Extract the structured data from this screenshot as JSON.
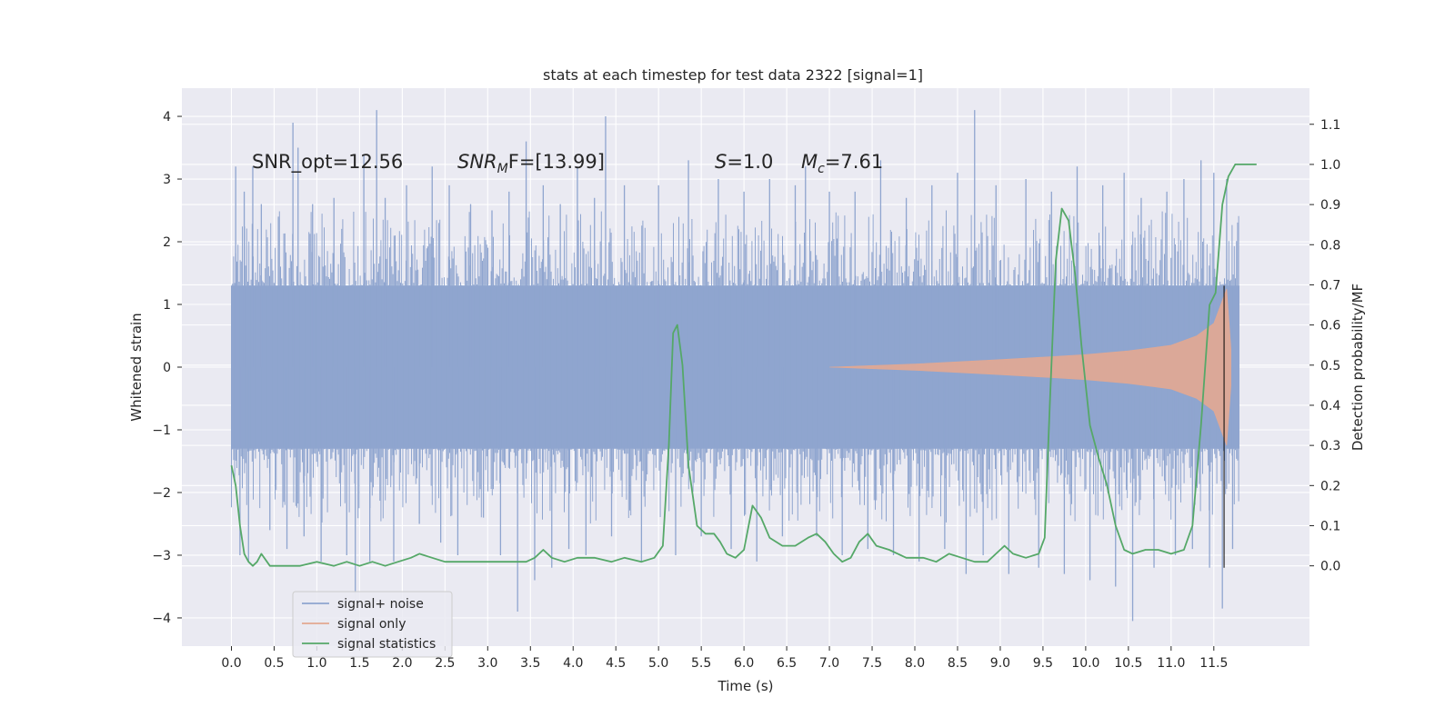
{
  "chart_data": {
    "type": "line",
    "title": "stats at each timestep for test data 2322 [signal=1]",
    "xlabel": "Time (s)",
    "ylabel": "Whitened strain",
    "y2label": "Detection probability/MF",
    "xlim": [
      -0.58,
      12.62
    ],
    "ylim": [
      -4.45,
      4.45
    ],
    "y2lim": [
      -0.2,
      1.19
    ],
    "x_ticks": [
      "0.0",
      "0.5",
      "1.0",
      "1.5",
      "2.0",
      "2.5",
      "3.0",
      "3.5",
      "4.0",
      "4.5",
      "5.0",
      "5.5",
      "6.0",
      "6.5",
      "7.0",
      "7.5",
      "8.0",
      "8.5",
      "9.0",
      "9.5",
      "10.0",
      "10.5",
      "11.0",
      "11.5"
    ],
    "y_ticks": [
      "4",
      "3",
      "2",
      "1",
      "0",
      "−1",
      "−2",
      "−3",
      "−4"
    ],
    "y2_ticks": [
      "1.1",
      "1.0",
      "0.9",
      "0.8",
      "0.7",
      "0.6",
      "0.5",
      "0.4",
      "0.3",
      "0.2",
      "0.1",
      "0.0"
    ],
    "grid": true,
    "legend_position": "lower-left",
    "annotations": {
      "snr_opt": "SNR_opt=12.56",
      "snr_mf_main": "SNR",
      "snr_mf_sub": "M",
      "snr_mf_rest": "F=[13.99]",
      "s_main": "S",
      "s_rest": "=1.0",
      "mc_main": "M",
      "mc_sub": "c",
      "mc_rest": "=7.61"
    },
    "series": [
      {
        "name": "signal+ noise",
        "color": "#8fa5cf",
        "axis": "left",
        "x_range": [
          0.0,
          11.8
        ],
        "envelope_abs": 1.3,
        "extremes": [
          [
            0.05,
            3.2
          ],
          [
            0.1,
            -3.0
          ],
          [
            0.15,
            2.8
          ],
          [
            0.2,
            -3.1
          ],
          [
            0.25,
            3.2
          ],
          [
            0.35,
            2.6
          ],
          [
            0.45,
            -2.6
          ],
          [
            0.55,
            2.4
          ],
          [
            0.65,
            -2.9
          ],
          [
            0.72,
            3.9
          ],
          [
            0.78,
            3.5
          ],
          [
            0.85,
            -2.7
          ],
          [
            0.95,
            2.6
          ],
          [
            1.05,
            -3.1
          ],
          [
            1.2,
            2.7
          ],
          [
            1.35,
            -3.0
          ],
          [
            1.45,
            -3.6
          ],
          [
            1.55,
            3.4
          ],
          [
            1.62,
            -3.1
          ],
          [
            1.7,
            4.1
          ],
          [
            1.8,
            2.7
          ],
          [
            1.9,
            -3.1
          ],
          [
            2.05,
            2.9
          ],
          [
            2.2,
            -2.5
          ],
          [
            2.35,
            3.2
          ],
          [
            2.45,
            -2.8
          ],
          [
            2.55,
            2.9
          ],
          [
            2.65,
            -3.0
          ],
          [
            2.8,
            2.6
          ],
          [
            2.95,
            -2.4
          ],
          [
            3.05,
            2.5
          ],
          [
            3.15,
            -3.0
          ],
          [
            3.25,
            2.8
          ],
          [
            3.35,
            -3.9
          ],
          [
            3.45,
            3.6
          ],
          [
            3.55,
            -3.4
          ],
          [
            3.65,
            2.9
          ],
          [
            3.75,
            -3.2
          ],
          [
            3.85,
            2.6
          ],
          [
            3.95,
            -2.9
          ],
          [
            4.05,
            3.2
          ],
          [
            4.15,
            -3.0
          ],
          [
            4.25,
            2.7
          ],
          [
            4.38,
            4.0
          ],
          [
            4.45,
            -2.7
          ],
          [
            4.6,
            2.9
          ],
          [
            4.8,
            -3.1
          ],
          [
            5.0,
            2.9
          ],
          [
            5.2,
            -3.0
          ],
          [
            5.35,
            3.3
          ],
          [
            5.5,
            -2.7
          ],
          [
            5.7,
            3.0
          ],
          [
            5.85,
            -2.9
          ],
          [
            6.0,
            2.8
          ],
          [
            6.15,
            -3.1
          ],
          [
            6.3,
            3.0
          ],
          [
            6.45,
            -2.7
          ],
          [
            6.6,
            2.9
          ],
          [
            6.72,
            3.2
          ],
          [
            6.85,
            -2.7
          ],
          [
            7.0,
            2.8
          ],
          [
            7.15,
            -3.0
          ],
          [
            7.3,
            2.8
          ],
          [
            7.45,
            -2.9
          ],
          [
            7.6,
            3.3
          ],
          [
            7.75,
            -3.0
          ],
          [
            7.9,
            2.7
          ],
          [
            8.05,
            -3.1
          ],
          [
            8.2,
            2.9
          ],
          [
            8.35,
            -2.9
          ],
          [
            8.5,
            3.1
          ],
          [
            8.6,
            -3.3
          ],
          [
            8.7,
            4.1
          ],
          [
            8.8,
            -3.0
          ],
          [
            8.95,
            2.9
          ],
          [
            9.1,
            -3.3
          ],
          [
            9.3,
            3.0
          ],
          [
            9.45,
            -3.2
          ],
          [
            9.6,
            2.8
          ],
          [
            9.75,
            -3.3
          ],
          [
            9.9,
            3.2
          ],
          [
            10.05,
            -3.4
          ],
          [
            10.2,
            2.9
          ],
          [
            10.35,
            -3.5
          ],
          [
            10.45,
            3.1
          ],
          [
            10.55,
            -4.05
          ],
          [
            10.65,
            2.7
          ],
          [
            10.8,
            -3.2
          ],
          [
            10.95,
            2.8
          ],
          [
            11.05,
            -3.0
          ],
          [
            11.15,
            3.0
          ],
          [
            11.25,
            -2.9
          ],
          [
            11.35,
            3.3
          ],
          [
            11.45,
            -3.2
          ],
          [
            11.5,
            3.1
          ],
          [
            11.6,
            -3.85
          ],
          [
            11.65,
            3.0
          ],
          [
            11.72,
            -2.9
          ]
        ]
      },
      {
        "name": "signal only",
        "color": "#e3a891",
        "axis": "left",
        "envelope": [
          [
            7.0,
            0.0
          ],
          [
            8.0,
            0.05
          ],
          [
            9.0,
            0.12
          ],
          [
            9.5,
            0.16
          ],
          [
            10.0,
            0.2
          ],
          [
            10.5,
            0.26
          ],
          [
            11.0,
            0.35
          ],
          [
            11.3,
            0.5
          ],
          [
            11.5,
            0.7
          ],
          [
            11.65,
            1.25
          ],
          [
            11.7,
            0.3
          ]
        ]
      },
      {
        "name": "signal statistics",
        "color": "#55a868",
        "axis": "right",
        "points": [
          [
            0.0,
            0.25
          ],
          [
            0.05,
            0.2
          ],
          [
            0.1,
            0.1
          ],
          [
            0.15,
            0.03
          ],
          [
            0.2,
            0.01
          ],
          [
            0.25,
            0.0
          ],
          [
            0.3,
            0.01
          ],
          [
            0.35,
            0.03
          ],
          [
            0.45,
            0.0
          ],
          [
            0.55,
            0.0
          ],
          [
            0.65,
            0.0
          ],
          [
            0.8,
            0.0
          ],
          [
            1.0,
            0.01
          ],
          [
            1.2,
            0.0
          ],
          [
            1.35,
            0.01
          ],
          [
            1.5,
            0.0
          ],
          [
            1.65,
            0.01
          ],
          [
            1.8,
            0.0
          ],
          [
            1.95,
            0.01
          ],
          [
            2.1,
            0.02
          ],
          [
            2.2,
            0.03
          ],
          [
            2.35,
            0.02
          ],
          [
            2.5,
            0.01
          ],
          [
            2.7,
            0.01
          ],
          [
            2.9,
            0.01
          ],
          [
            3.1,
            0.01
          ],
          [
            3.3,
            0.01
          ],
          [
            3.45,
            0.01
          ],
          [
            3.55,
            0.02
          ],
          [
            3.65,
            0.04
          ],
          [
            3.75,
            0.02
          ],
          [
            3.9,
            0.01
          ],
          [
            4.05,
            0.02
          ],
          [
            4.25,
            0.02
          ],
          [
            4.45,
            0.01
          ],
          [
            4.6,
            0.02
          ],
          [
            4.8,
            0.01
          ],
          [
            4.95,
            0.02
          ],
          [
            5.05,
            0.05
          ],
          [
            5.12,
            0.3
          ],
          [
            5.17,
            0.58
          ],
          [
            5.22,
            0.6
          ],
          [
            5.28,
            0.5
          ],
          [
            5.35,
            0.25
          ],
          [
            5.45,
            0.1
          ],
          [
            5.55,
            0.08
          ],
          [
            5.65,
            0.08
          ],
          [
            5.72,
            0.06
          ],
          [
            5.8,
            0.03
          ],
          [
            5.9,
            0.02
          ],
          [
            6.0,
            0.04
          ],
          [
            6.1,
            0.15
          ],
          [
            6.2,
            0.12
          ],
          [
            6.3,
            0.07
          ],
          [
            6.45,
            0.05
          ],
          [
            6.6,
            0.05
          ],
          [
            6.75,
            0.07
          ],
          [
            6.85,
            0.08
          ],
          [
            6.95,
            0.06
          ],
          [
            7.05,
            0.03
          ],
          [
            7.15,
            0.01
          ],
          [
            7.25,
            0.02
          ],
          [
            7.35,
            0.06
          ],
          [
            7.45,
            0.08
          ],
          [
            7.55,
            0.05
          ],
          [
            7.7,
            0.04
          ],
          [
            7.9,
            0.02
          ],
          [
            8.1,
            0.02
          ],
          [
            8.25,
            0.01
          ],
          [
            8.4,
            0.03
          ],
          [
            8.55,
            0.02
          ],
          [
            8.7,
            0.01
          ],
          [
            8.85,
            0.01
          ],
          [
            8.95,
            0.03
          ],
          [
            9.05,
            0.05
          ],
          [
            9.15,
            0.03
          ],
          [
            9.3,
            0.02
          ],
          [
            9.45,
            0.03
          ],
          [
            9.52,
            0.07
          ],
          [
            9.58,
            0.4
          ],
          [
            9.65,
            0.76
          ],
          [
            9.72,
            0.89
          ],
          [
            9.8,
            0.86
          ],
          [
            9.88,
            0.72
          ],
          [
            9.95,
            0.55
          ],
          [
            10.05,
            0.35
          ],
          [
            10.15,
            0.27
          ],
          [
            10.25,
            0.2
          ],
          [
            10.35,
            0.1
          ],
          [
            10.45,
            0.04
          ],
          [
            10.55,
            0.03
          ],
          [
            10.7,
            0.04
          ],
          [
            10.85,
            0.04
          ],
          [
            11.0,
            0.03
          ],
          [
            11.15,
            0.04
          ],
          [
            11.25,
            0.1
          ],
          [
            11.35,
            0.35
          ],
          [
            11.45,
            0.65
          ],
          [
            11.52,
            0.68
          ],
          [
            11.6,
            0.9
          ],
          [
            11.67,
            0.97
          ],
          [
            11.75,
            1.0
          ],
          [
            11.85,
            1.0
          ],
          [
            11.95,
            1.0
          ],
          [
            12.0,
            1.0
          ]
        ]
      }
    ],
    "vertical_marker": {
      "x": 11.62,
      "y_range": [
        -3.2,
        1.3
      ],
      "color": "#000000"
    }
  }
}
